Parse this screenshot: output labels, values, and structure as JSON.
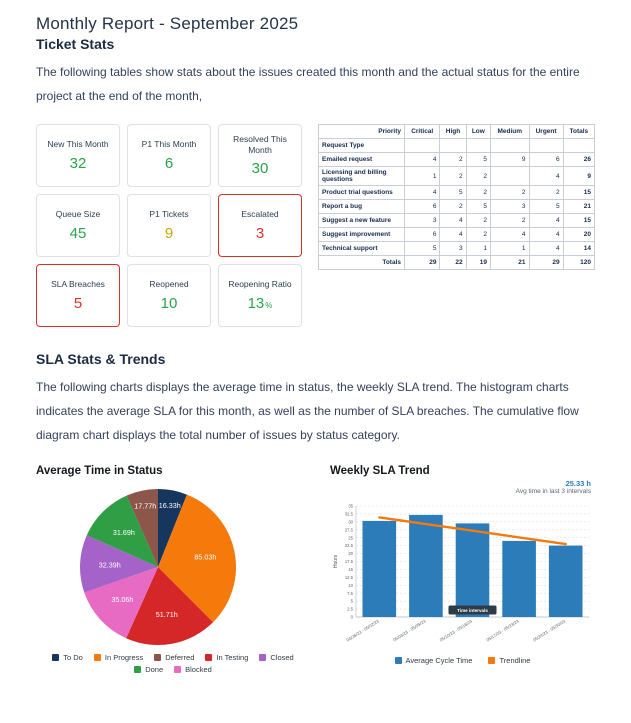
{
  "page": {
    "title": "Monthly Report - September 2025",
    "section1": "Ticket Stats",
    "intro": "The following tables show stats about the issues created this month and the actual status for the entire project at the end of the month,",
    "section2": "SLA Stats & Trends",
    "sla_intro": "The following charts displays the average time in status, the weekly SLA trend. The histogram charts indicates the average SLA for this month, as well as the number of SLA breaches. The cumulative flow diagram chart displays the total number of issues by status category."
  },
  "stat_cards": [
    {
      "label": "New This Month",
      "value": "32",
      "color": "green",
      "alert": false
    },
    {
      "label": "P1 This Month",
      "value": "6",
      "color": "green",
      "alert": false
    },
    {
      "label": "Resolved This Month",
      "value": "30",
      "color": "green",
      "alert": false
    },
    {
      "label": "Queue Size",
      "value": "45",
      "color": "green",
      "alert": false
    },
    {
      "label": "P1 Tickets",
      "value": "9",
      "color": "yellow",
      "alert": false
    },
    {
      "label": "Escalated",
      "value": "3",
      "color": "red",
      "alert": true
    },
    {
      "label": "SLA Breaches",
      "value": "5",
      "color": "red",
      "alert": true
    },
    {
      "label": "Reopened",
      "value": "10",
      "color": "green",
      "alert": false
    },
    {
      "label": "Reopening Ratio",
      "value": "13",
      "suffix": "%",
      "color": "green",
      "alert": false
    }
  ],
  "pivot_table": {
    "corner_top": "Priority",
    "corner_bottom": "Request Type",
    "columns": [
      "Critical",
      "High",
      "Low",
      "Medium",
      "Urgent",
      "Totals"
    ],
    "rows": [
      {
        "label": "Emailed request",
        "values": [
          "4",
          "2",
          "5",
          "9",
          "6",
          "26"
        ]
      },
      {
        "label": "Licensing and billing questions",
        "values": [
          "1",
          "2",
          "2",
          "",
          "4",
          "9"
        ]
      },
      {
        "label": "Product trial questions",
        "values": [
          "4",
          "5",
          "2",
          "2",
          "2",
          "15"
        ]
      },
      {
        "label": "Report a bug",
        "values": [
          "6",
          "2",
          "5",
          "3",
          "5",
          "21"
        ]
      },
      {
        "label": "Suggest a new feature",
        "values": [
          "3",
          "4",
          "2",
          "2",
          "4",
          "15"
        ]
      },
      {
        "label": "Suggest improvement",
        "values": [
          "6",
          "4",
          "2",
          "4",
          "4",
          "20"
        ]
      },
      {
        "label": "Technical support",
        "values": [
          "5",
          "3",
          "1",
          "1",
          "4",
          "14"
        ]
      }
    ],
    "totals_label": "Totals",
    "totals": [
      "29",
      "22",
      "19",
      "21",
      "29",
      "120"
    ]
  },
  "chart_data": [
    {
      "type": "pie",
      "title": "Average Time in Status",
      "unit": "h",
      "labels": [
        "To Do",
        "In Progress",
        "In Testing",
        "Blocked",
        "Closed",
        "Done",
        "Deferred"
      ],
      "values": [
        16.33,
        85.03,
        51.71,
        35.06,
        32.39,
        31.69,
        17.77
      ],
      "colors": [
        "#17365d",
        "#f5790b",
        "#d62728",
        "#e76bc3",
        "#a563c9",
        "#2f9e44",
        "#8c564b"
      ],
      "legend": [
        {
          "label": "To Do",
          "color": "#17365d"
        },
        {
          "label": "In Progress",
          "color": "#f5790b"
        },
        {
          "label": "Deferred",
          "color": "#8c564b"
        },
        {
          "label": "In Testing",
          "color": "#d62728"
        },
        {
          "label": "Closed",
          "color": "#a563c9"
        },
        {
          "label": "Done",
          "color": "#2f9e44"
        },
        {
          "label": "Blocked",
          "color": "#e76bc3"
        }
      ],
      "legend_position": "bottom"
    },
    {
      "type": "bar",
      "title": "Weekly SLA Trend",
      "categories": [
        "04/26/23 - 05/02/23",
        "05/03/23 - 05/09/23",
        "05/10/23 - 05/16/23",
        "05/17/23 - 05/23/23",
        "05/24/23 - 05/30/23"
      ],
      "series": [
        {
          "name": "Average Cycle Time",
          "type": "bar",
          "values": [
            30.3,
            32.2,
            29.5,
            24,
            22.5
          ],
          "color": "#2b7cb9"
        },
        {
          "name": "Trendline",
          "type": "line",
          "values": [
            31.4,
            29.3,
            27.2,
            25.1,
            23.0
          ],
          "color": "#f5790b"
        }
      ],
      "xlabel": "Time intervals",
      "ylabel": "Hours",
      "ylim": [
        0,
        35
      ],
      "ytick_step": 2.5,
      "grid": true,
      "legend_position": "bottom",
      "annotation": {
        "value": "25.33 h",
        "caption": "Avg time in last 3 intervals"
      }
    }
  ]
}
